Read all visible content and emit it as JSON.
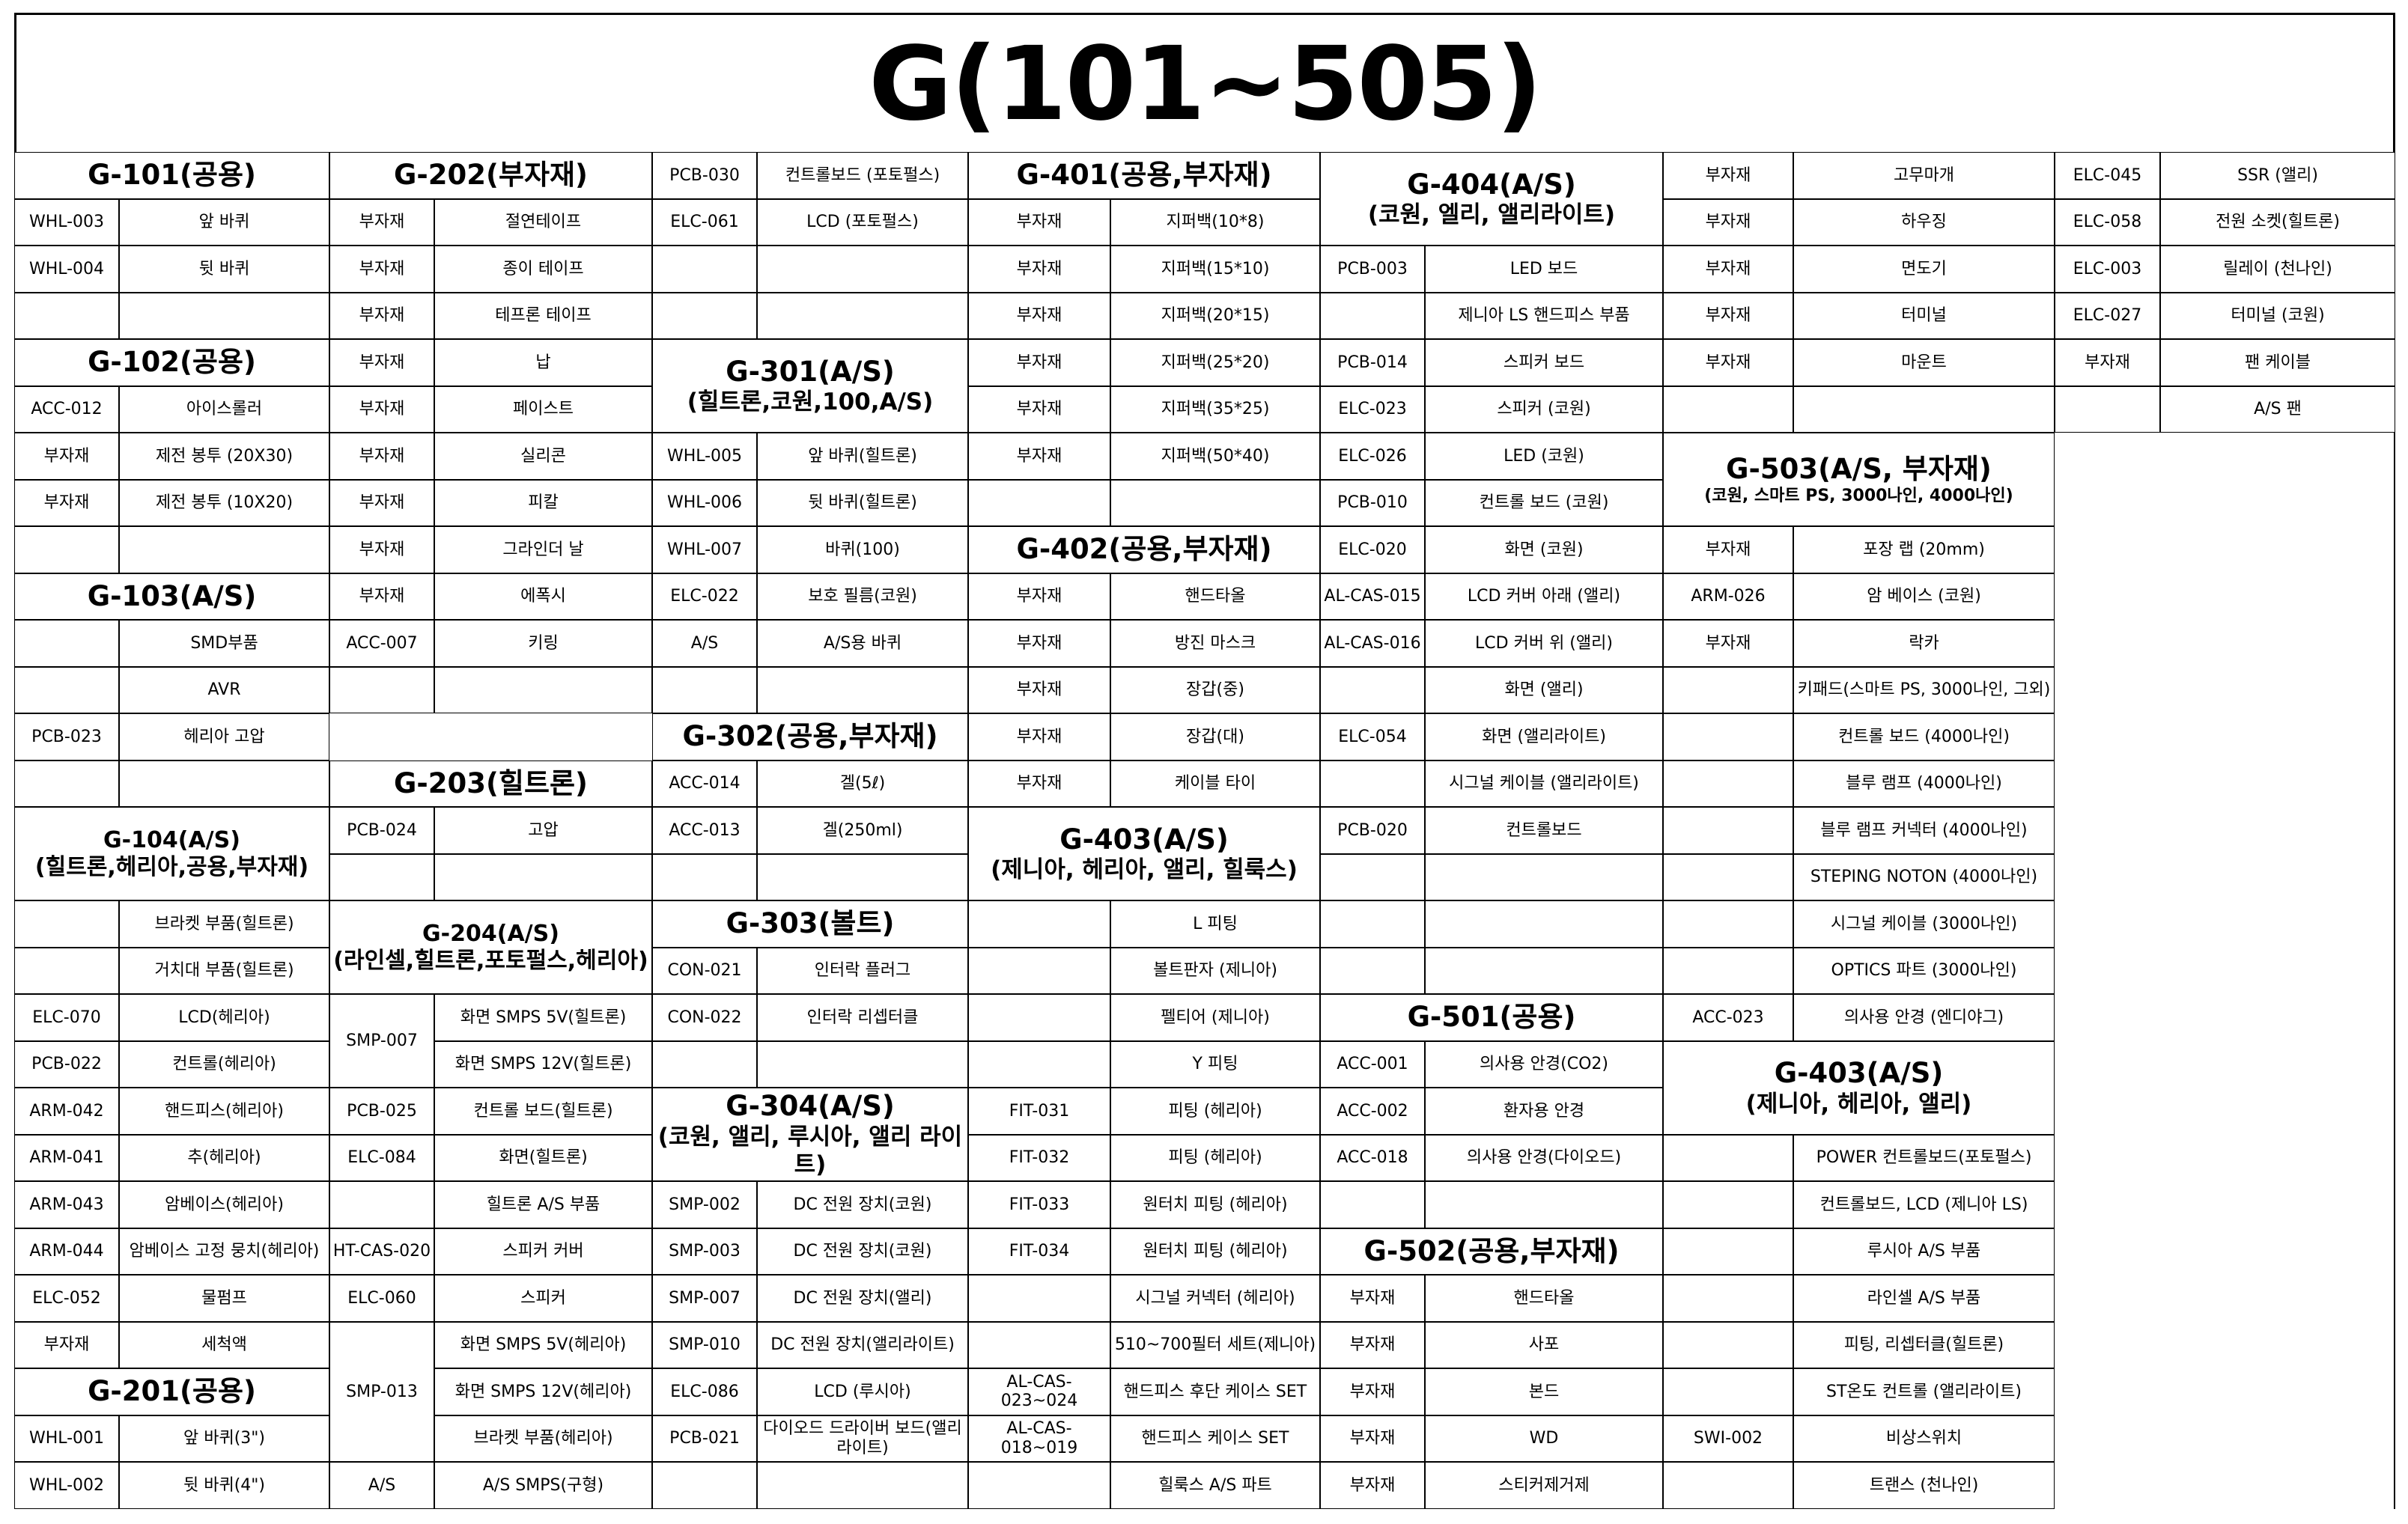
{
  "title": "G(101~505)",
  "sections": {
    "g101": {
      "title": "G-101(공용)"
    },
    "g102": {
      "title": "G-102(공용)"
    },
    "g103": {
      "title": "G-103(A/S)"
    },
    "g104": {
      "title": "G-104(A/S)",
      "sub": "(힐트론,헤리아,공용,부자재)"
    },
    "g201": {
      "title": "G-201(공용)"
    },
    "g202": {
      "title": "G-202(부자재)"
    },
    "g203": {
      "title": "G-203(힐트론)"
    },
    "g204": {
      "title": "G-204(A/S)",
      "sub": "(라인셀,힐트론,포토펄스,헤리아)"
    },
    "g301": {
      "title": "G-301(A/S)",
      "sub": "(힐트론,코원,100,A/S)"
    },
    "g302": {
      "title": "G-302(공용,부자재)"
    },
    "g303": {
      "title": "G-303(볼트)"
    },
    "g304": {
      "title": "G-304(A/S)",
      "sub": "(코원, 앨리, 루시아, 앨리 라이트)"
    },
    "g401": {
      "title": "G-401(공용,부자재)"
    },
    "g402": {
      "title": "G-402(공용,부자재)"
    },
    "g403": {
      "title": "G-403(A/S)",
      "sub": "(제니아, 헤리아, 앨리, 힐룩스)"
    },
    "g404": {
      "title": "G-404(A/S)",
      "sub": "(코원, 엘리, 앨리라이트)"
    },
    "g501": {
      "title": "G-501(공용)"
    },
    "g502": {
      "title": "G-502(공용,부자재)"
    },
    "g503": {
      "title": "G-503(A/S, 부자재)",
      "sub": "(코원, 스마트 PS, 3000나인, 4000나인)"
    },
    "g403b": {
      "title": "G-403(A/S)",
      "sub": "(제니아, 헤리아, 앨리)"
    }
  },
  "rows": {
    "c1": [
      [
        "WHL-003",
        "앞 바퀴"
      ],
      [
        "WHL-004",
        "뒷 바퀴"
      ],
      [
        "",
        ""
      ],
      [
        "ACC-012",
        "아이스롤러"
      ],
      [
        "부자재",
        "제전 봉투 (20X30)"
      ],
      [
        "부자재",
        "제전 봉투 (10X20)"
      ],
      [
        "",
        ""
      ],
      [
        "",
        "SMD부품"
      ],
      [
        "",
        "AVR"
      ],
      [
        "PCB-023",
        "헤리아 고압"
      ],
      [
        "",
        ""
      ],
      [
        "",
        "브라켓 부품(힐트론)"
      ],
      [
        "",
        "거치대 부품(힐트론)"
      ],
      [
        "ELC-070",
        "LCD(헤리아)"
      ],
      [
        "PCB-022",
        "컨트롤(헤리아)"
      ],
      [
        "ARM-042",
        "핸드피스(헤리아)"
      ],
      [
        "ARM-041",
        "추(헤리아)"
      ],
      [
        "ARM-043",
        "암베이스(헤리아)"
      ],
      [
        "ARM-044",
        "암베이스 고정 뭉치(헤리아)"
      ],
      [
        "ELC-052",
        "물펌프"
      ],
      [
        "부자재",
        "세척액"
      ],
      [
        "WHL-001",
        "앞 바퀴(3\")"
      ],
      [
        "WHL-002",
        "뒷 바퀴(4\")"
      ]
    ],
    "c2": [
      [
        "부자재",
        "절연테이프"
      ],
      [
        "부자재",
        "종이 테이프"
      ],
      [
        "부자재",
        "테프론 테이프"
      ],
      [
        "부자재",
        "납"
      ],
      [
        "부자재",
        "페이스트"
      ],
      [
        "부자재",
        "실리콘"
      ],
      [
        "부자재",
        "피칼"
      ],
      [
        "부자재",
        "그라인더 날"
      ],
      [
        "부자재",
        "에폭시"
      ],
      [
        "ACC-007",
        "키링"
      ],
      [
        "",
        ""
      ],
      [
        "PCB-024",
        "고압"
      ],
      [
        "",
        ""
      ],
      [
        "SMP-007",
        "화면 SMPS 5V(힐트론)"
      ],
      [
        "",
        "화면 SMPS 12V(힐트론)"
      ],
      [
        "PCB-025",
        "컨트롤 보드(힐트론)"
      ],
      [
        "ELC-084",
        "화면(힐트론)"
      ],
      [
        "",
        "힐트론 A/S 부품"
      ],
      [
        "HT-CAS-020",
        "스피커 커버"
      ],
      [
        "ELC-060",
        "스피커"
      ],
      [
        "SMP-013",
        "화면 SMPS 5V(헤리아)"
      ],
      [
        "",
        "화면 SMPS 12V(헤리아)"
      ],
      [
        "",
        "브라켓 부품(헤리아)"
      ],
      [
        "A/S",
        "A/S SMPS(구형)"
      ]
    ],
    "c3": [
      [
        "PCB-030",
        "컨트롤보드 (포토펄스)"
      ],
      [
        "ELC-061",
        "LCD (포토펄스)"
      ],
      [
        "",
        ""
      ],
      [
        "",
        ""
      ],
      [
        "WHL-005",
        "앞 바퀴(힐트론)"
      ],
      [
        "WHL-006",
        "뒷 바퀴(힐트론)"
      ],
      [
        "WHL-007",
        "바퀴(100)"
      ],
      [
        "ELC-022",
        "보호 필름(코원)"
      ],
      [
        "A/S",
        "A/S용 바퀴"
      ],
      [
        "",
        ""
      ],
      [
        "ACC-014",
        "겔(5ℓ)"
      ],
      [
        "ACC-013",
        "겔(250ml)"
      ],
      [
        "",
        ""
      ],
      [
        "CON-021",
        "인터락 플러그"
      ],
      [
        "CON-022",
        "인터락 리셉터클"
      ],
      [
        "",
        ""
      ],
      [
        "SMP-002",
        "DC 전원 장치(코원)"
      ],
      [
        "SMP-003",
        "DC 전원 장치(코원)"
      ],
      [
        "SMP-007",
        "DC 전원 장치(앨리)"
      ],
      [
        "SMP-010",
        "DC 전원 장치(앨리라이트)"
      ],
      [
        "ELC-086",
        "LCD (루시아)"
      ],
      [
        "PCB-021",
        "다이오드 드라이버 보드(앨리라이트)"
      ],
      [
        "",
        ""
      ]
    ],
    "c4": [
      [
        "부자재",
        "지퍼백(10*8)"
      ],
      [
        "부자재",
        "지퍼백(15*10)"
      ],
      [
        "부자재",
        "지퍼백(20*15)"
      ],
      [
        "부자재",
        "지퍼백(25*20)"
      ],
      [
        "부자재",
        "지퍼백(35*25)"
      ],
      [
        "부자재",
        "지퍼백(50*40)"
      ],
      [
        "",
        ""
      ],
      [
        "부자재",
        "핸드타올"
      ],
      [
        "부자재",
        "방진 마스크"
      ],
      [
        "부자재",
        "장갑(중)"
      ],
      [
        "부자재",
        "장갑(대)"
      ],
      [
        "부자재",
        "케이블 타이"
      ],
      [
        "",
        "L 피팅"
      ],
      [
        "",
        "볼트판자 (제니아)"
      ],
      [
        "",
        "펠티어 (제니아)"
      ],
      [
        "",
        "Y 피팅"
      ],
      [
        "FIT-031",
        "피팅 (헤리아)"
      ],
      [
        "FIT-032",
        "피팅 (헤리아)"
      ],
      [
        "FIT-033",
        "원터치 피팅 (헤리아)"
      ],
      [
        "FIT-034",
        "원터치 피팅 (헤리아)"
      ],
      [
        "",
        "시그널 커넥터 (헤리아)"
      ],
      [
        "",
        "510~700필터 세트(제니아)"
      ],
      [
        "AL-CAS-023~024",
        "핸드피스 후단 케이스 SET"
      ],
      [
        "AL-CAS-018~019",
        "핸드피스 케이스 SET"
      ],
      [
        "",
        "힐룩스 A/S 파트"
      ]
    ],
    "c5": [
      [
        "PCB-003",
        "LED 보드"
      ],
      [
        "",
        "제니아 LS 핸드피스 부품"
      ],
      [
        "PCB-014",
        "스피커 보드"
      ],
      [
        "ELC-023",
        "스피커 (코원)"
      ],
      [
        "ELC-026",
        "LED (코원)"
      ],
      [
        "PCB-010",
        "컨트롤 보드 (코원)"
      ],
      [
        "ELC-020",
        "화면 (코원)"
      ],
      [
        "AL-CAS-015",
        "LCD 커버 아래 (앨리)"
      ],
      [
        "AL-CAS-016",
        "LCD 커버 위 (앨리)"
      ],
      [
        "",
        "화면 (앨리)"
      ],
      [
        "ELC-054",
        "화면 (앨리라이트)"
      ],
      [
        "",
        "시그널 케이블 (앨리라이트)"
      ],
      [
        "PCB-020",
        "컨트롤보드"
      ],
      [
        "",
        ""
      ],
      [
        "",
        ""
      ],
      [
        "",
        ""
      ],
      [
        "ACC-001",
        "의사용 안경(CO2)"
      ],
      [
        "ACC-002",
        "환자용 안경"
      ],
      [
        "ACC-018",
        "의사용 안경(다이오드)"
      ],
      [
        "",
        ""
      ],
      [
        "부자재",
        "핸드타올"
      ],
      [
        "부자재",
        "사포"
      ],
      [
        "부자재",
        "본드"
      ],
      [
        "부자재",
        "WD"
      ],
      [
        "부자재",
        "스티커제거제"
      ]
    ],
    "c6": [
      [
        "부자재",
        "고무마개"
      ],
      [
        "부자재",
        "하우징"
      ],
      [
        "부자재",
        "면도기"
      ],
      [
        "부자재",
        "터미널"
      ],
      [
        "부자재",
        "마운트"
      ],
      [
        "",
        ""
      ],
      [
        "부자재",
        "포장 랩 (20mm)"
      ],
      [
        "ARM-026",
        "암 베이스 (코원)"
      ],
      [
        "부자재",
        "락카"
      ],
      [
        "",
        "키패드(스마트 PS, 3000나인, 그외)"
      ],
      [
        "",
        "컨트롤 보드 (4000나인)"
      ],
      [
        "",
        "블루 램프 (4000나인)"
      ],
      [
        "",
        "블루 램프 커넥터 (4000나인)"
      ],
      [
        "",
        "STEPING NOTON (4000나인)"
      ],
      [
        "",
        "시그널 케이블 (3000나인)"
      ],
      [
        "",
        "OPTICS 파트 (3000나인)"
      ],
      [
        "ACC-023",
        "의사용 안경 (엔디야그)"
      ],
      [
        "",
        "POWER 컨트롤보드(포토펄스)"
      ],
      [
        "",
        "컨트롤보드, LCD (제니아 LS)"
      ],
      [
        "",
        "루시아 A/S 부품"
      ],
      [
        "",
        "라인셀 A/S 부품"
      ],
      [
        "",
        "피팅, 리셉터클(힐트론)"
      ],
      [
        "",
        "ST온도 컨트롤 (앨리라이트)"
      ],
      [
        "SWI-002",
        "비상스위치"
      ],
      [
        "",
        "트랜스 (천나인)"
      ]
    ],
    "c7": [
      [
        "ELC-045",
        "SSR (앨리)"
      ],
      [
        "ELC-058",
        "전원 소켓(힐트론)"
      ],
      [
        "ELC-003",
        "릴레이 (천나인)"
      ],
      [
        "ELC-027",
        "터미널 (코원)"
      ],
      [
        "부자재",
        "팬 케이블"
      ],
      [
        "",
        "A/S 팬"
      ]
    ]
  }
}
